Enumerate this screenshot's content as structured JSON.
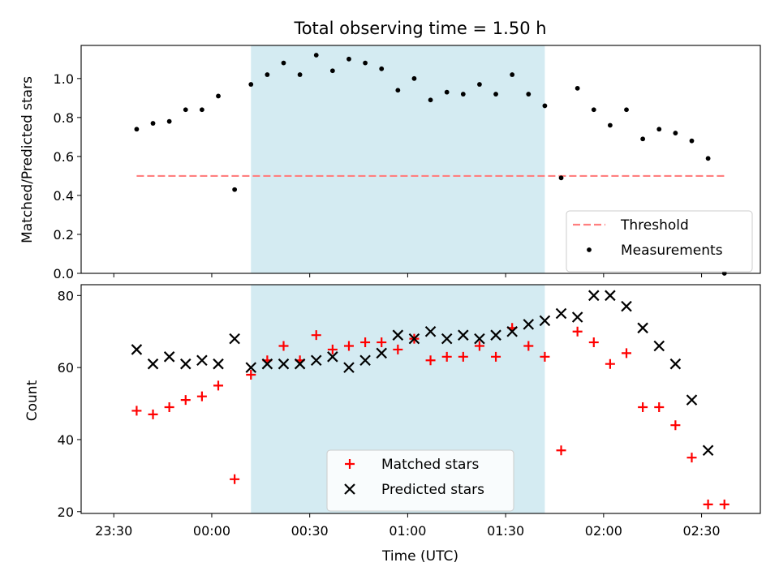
{
  "chart_data": [
    {
      "type": "scatter",
      "title": "Total observing time = 1.50 h",
      "ylabel": "Matched/Predicted stars",
      "xlabel": "",
      "xlim": [
        "23:20",
        "02:48"
      ],
      "ylim": [
        0,
        1.17
      ],
      "yticks": [
        "0.0",
        "0.2",
        "0.4",
        "0.6",
        "0.8",
        "1.0"
      ],
      "highlight_span": [
        "00:12",
        "01:42"
      ],
      "legend": {
        "placement": "lower right",
        "entries": [
          "Threshold",
          "Measurements"
        ]
      },
      "threshold": {
        "name": "Threshold",
        "y": 0.5,
        "x_range": [
          "23:37",
          "02:37"
        ],
        "color": "#ff7f7f"
      },
      "series": [
        {
          "name": "Measurements",
          "color": "#000000",
          "x": [
            "23:37",
            "23:42",
            "23:47",
            "23:52",
            "23:57",
            "00:02",
            "00:07",
            "00:12",
            "00:17",
            "00:22",
            "00:27",
            "00:32",
            "00:37",
            "00:42",
            "00:47",
            "00:52",
            "00:57",
            "01:02",
            "01:07",
            "01:12",
            "01:17",
            "01:22",
            "01:27",
            "01:32",
            "01:37",
            "01:42",
            "01:47",
            "01:52",
            "01:57",
            "02:02",
            "02:07",
            "02:12",
            "02:17",
            "02:22",
            "02:27",
            "02:32",
            "02:37"
          ],
          "y": [
            0.74,
            0.77,
            0.78,
            0.84,
            0.84,
            0.91,
            0.43,
            0.97,
            1.02,
            1.08,
            1.02,
            1.12,
            1.04,
            1.1,
            1.08,
            1.05,
            0.94,
            1.0,
            0.89,
            0.93,
            0.92,
            0.97,
            0.92,
            1.02,
            0.92,
            0.86,
            0.49,
            0.95,
            0.84,
            0.76,
            0.84,
            0.69,
            0.74,
            0.72,
            0.68,
            0.59,
            0.0
          ]
        }
      ]
    },
    {
      "type": "scatter",
      "title": "",
      "ylabel": "Count",
      "xlabel": "Time (UTC)",
      "xlim": [
        "23:20",
        "02:48"
      ],
      "ylim": [
        19.5,
        83
      ],
      "yticks": [
        "20",
        "40",
        "60",
        "80"
      ],
      "xticks": [
        "23:30",
        "00:00",
        "00:30",
        "01:00",
        "01:30",
        "02:00",
        "02:30"
      ],
      "highlight_span": [
        "00:12",
        "01:42"
      ],
      "legend": {
        "placement": "lower center",
        "entries": [
          "Matched stars",
          "Predicted stars"
        ]
      },
      "series": [
        {
          "name": "Matched stars",
          "color": "#ff0000",
          "marker": "plus",
          "x": [
            "23:37",
            "23:42",
            "23:47",
            "23:52",
            "23:57",
            "00:02",
            "00:07",
            "00:12",
            "00:17",
            "00:22",
            "00:27",
            "00:32",
            "00:37",
            "00:42",
            "00:47",
            "00:52",
            "00:57",
            "01:02",
            "01:07",
            "01:12",
            "01:17",
            "01:22",
            "01:27",
            "01:32",
            "01:37",
            "01:42",
            "01:47",
            "01:52",
            "01:57",
            "02:02",
            "02:07",
            "02:12",
            "02:17",
            "02:22",
            "02:27",
            "02:32",
            "02:37"
          ],
          "y": [
            48,
            47,
            49,
            51,
            52,
            55,
            29,
            58,
            62,
            66,
            62,
            69,
            65,
            66,
            67,
            67,
            65,
            68,
            62,
            63,
            63,
            66,
            63,
            71,
            66,
            63,
            37,
            70,
            67,
            61,
            64,
            49,
            49,
            44,
            35,
            22,
            22
          ]
        },
        {
          "name": "Predicted stars",
          "color": "#000000",
          "marker": "x",
          "x": [
            "23:37",
            "23:42",
            "23:47",
            "23:52",
            "23:57",
            "00:02",
            "00:07",
            "00:12",
            "00:17",
            "00:22",
            "00:27",
            "00:32",
            "00:37",
            "00:42",
            "00:47",
            "00:52",
            "00:57",
            "01:02",
            "01:07",
            "01:12",
            "01:17",
            "01:22",
            "01:27",
            "01:32",
            "01:37",
            "01:42",
            "01:47",
            "01:52",
            "01:57",
            "02:02",
            "02:07",
            "02:12",
            "02:17",
            "02:22",
            "02:27",
            "02:32"
          ],
          "y": [
            65,
            61,
            63,
            61,
            62,
            61,
            68,
            60,
            61,
            61,
            61,
            62,
            63,
            60,
            62,
            64,
            69,
            68,
            70,
            68,
            69,
            68,
            69,
            70,
            72,
            73,
            75,
            74,
            80,
            80,
            77,
            71,
            66,
            61,
            51,
            37
          ]
        }
      ]
    }
  ]
}
